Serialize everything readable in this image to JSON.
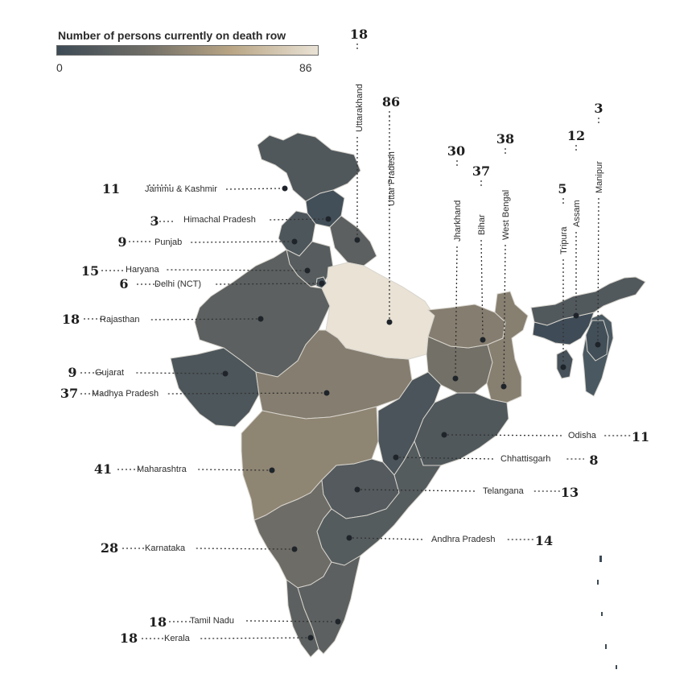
{
  "legend": {
    "title": "Number of persons currently on death row",
    "min_label": "0",
    "max_label": "86",
    "min": 0,
    "max": 86,
    "colors": [
      "#3d4b56",
      "#6f6d66",
      "#b9a585",
      "#e9e2d5"
    ]
  },
  "states": [
    {
      "id": "jk",
      "name": "Jammu & Kashmir",
      "count": "11",
      "value": 11
    },
    {
      "id": "hp",
      "name": "Himachal Pradesh",
      "count": "3",
      "value": 3
    },
    {
      "id": "pb",
      "name": "Punjab",
      "count": "9",
      "value": 9
    },
    {
      "id": "hr",
      "name": "Haryana",
      "count": "15",
      "value": 15
    },
    {
      "id": "dl",
      "name": "Delhi (NCT)",
      "count": "6",
      "value": 6
    },
    {
      "id": "rj",
      "name": "Rajasthan",
      "count": "18",
      "value": 18
    },
    {
      "id": "gj",
      "name": "Gujarat",
      "count": "9",
      "value": 9
    },
    {
      "id": "mp",
      "name": "Madhya Pradesh",
      "count": "37",
      "value": 37
    },
    {
      "id": "mh",
      "name": "Maharashtra",
      "count": "41",
      "value": 41
    },
    {
      "id": "ka",
      "name": "Karnataka",
      "count": "28",
      "value": 28
    },
    {
      "id": "tn",
      "name": "Tamil Nadu",
      "count": "18",
      "value": 18
    },
    {
      "id": "kl",
      "name": "Kerala",
      "count": "18",
      "value": 18
    },
    {
      "id": "uk",
      "name": "Uttarakhand",
      "count": "18",
      "value": 18
    },
    {
      "id": "up",
      "name": "Uttar Pradesh",
      "count": "86",
      "value": 86
    },
    {
      "id": "jh",
      "name": "Jharkhand",
      "count": "30",
      "value": 30
    },
    {
      "id": "br",
      "name": "Bihar",
      "count": "37",
      "value": 37
    },
    {
      "id": "wb",
      "name": "West Bengal",
      "count": "38",
      "value": 38
    },
    {
      "id": "tr",
      "name": "Tripura",
      "count": "5",
      "value": 5
    },
    {
      "id": "as",
      "name": "Assam",
      "count": "12",
      "value": 12
    },
    {
      "id": "mn",
      "name": "Manipur",
      "count": "3",
      "value": 3
    },
    {
      "id": "od",
      "name": "Odisha",
      "count": "11",
      "value": 11
    },
    {
      "id": "cg",
      "name": "Chhattisgarh",
      "count": "8",
      "value": 8
    },
    {
      "id": "tg",
      "name": "Telangana",
      "count": "13",
      "value": 13
    },
    {
      "id": "ap",
      "name": "Andhra Pradesh",
      "count": "14",
      "value": 14
    }
  ]
}
